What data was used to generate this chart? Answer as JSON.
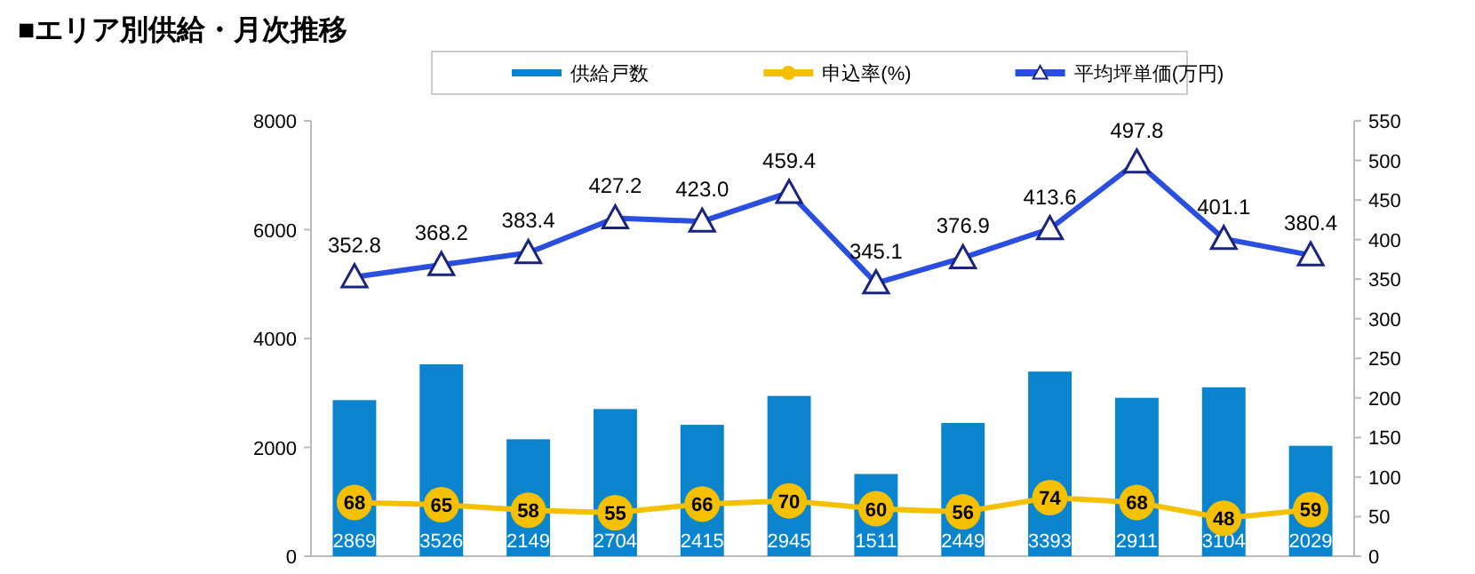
{
  "chart_data": {
    "type": "bar",
    "title": "■エリア別供給・月次推移",
    "categories": [
      null,
      null,
      null,
      null,
      null,
      null,
      null,
      null,
      null,
      null,
      null,
      null
    ],
    "series": [
      {
        "name": "供給戸数",
        "color": "#0a84cc",
        "values": [
          2869,
          3526,
          2149,
          2704,
          2415,
          2945,
          1511,
          2449,
          3393,
          2911,
          3104,
          2029
        ]
      },
      {
        "name": "申込率(%)",
        "type": "line",
        "axis": "y2",
        "marker": "circle",
        "color": "#f5c000",
        "values": [
          68,
          65,
          58,
          55,
          66,
          70,
          60,
          56,
          74,
          68,
          48,
          59
        ]
      },
      {
        "name": "平均坪単価(万円)",
        "type": "line",
        "axis": "y2",
        "marker": "triangle",
        "color": "#2a4fe0",
        "values": [
          352.8,
          368.2,
          383.4,
          427.2,
          423.0,
          459.4,
          345.1,
          376.9,
          413.6,
          497.8,
          401.1,
          380.4
        ]
      }
    ],
    "value_labels": [
      [
        "2869",
        "3526",
        "2149",
        "2704",
        "2415",
        "2945",
        "1511",
        "2449",
        "3393",
        "2911",
        "3104",
        "2029"
      ],
      [
        "68",
        "65",
        "58",
        "55",
        "66",
        "70",
        "60",
        "56",
        "74",
        "68",
        "48",
        "59"
      ],
      [
        "352.8",
        "368.2",
        "383.4",
        "427.2",
        "423.0",
        "459.4",
        "345.1",
        "376.9",
        "413.6",
        "497.8",
        "401.1",
        "380.4"
      ]
    ],
    "ylim": [
      0,
      8000
    ],
    "yticks": [
      0,
      2000,
      4000,
      6000,
      8000
    ],
    "y2lim": [
      0,
      550
    ],
    "y2ticks": [
      0,
      50,
      100,
      150,
      200,
      250,
      300,
      350,
      400,
      450,
      500,
      550
    ],
    "legend": "top",
    "grid": false
  }
}
